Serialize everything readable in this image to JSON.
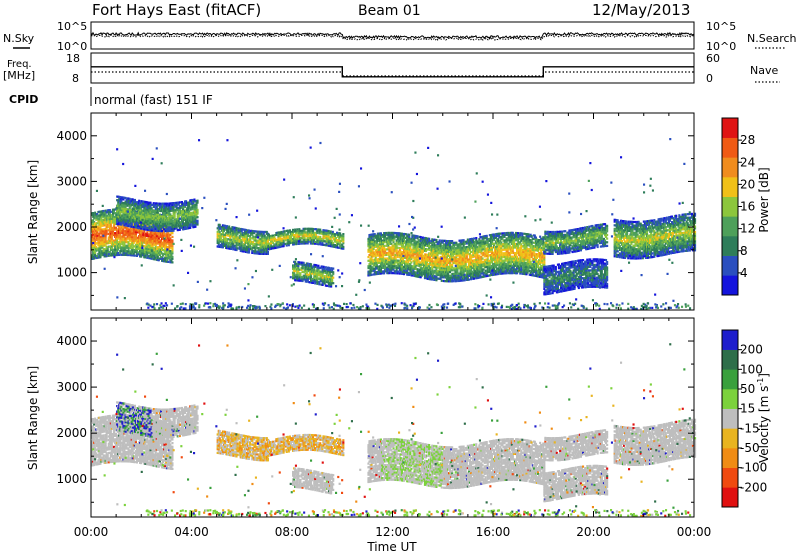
{
  "header": {
    "station": "Fort Hays East (fitACF)",
    "beam": "Beam 01",
    "date": "12/May/2013"
  },
  "noise_panel": {
    "left_label": "N.Sky",
    "right_label": "N.Search",
    "left_ticks": [
      "10^5",
      "10^0"
    ],
    "right_ticks": [
      "10^5",
      "10^0"
    ]
  },
  "freq_panel": {
    "left_label_line1": "Freq.",
    "left_label_line2": "[MHz]",
    "left_ticks": [
      "18",
      "8"
    ],
    "right_ticks": [
      "60",
      "0"
    ],
    "right_label": "Nave",
    "freq_mhz_step": [
      {
        "from_hour": 0,
        "to_hour": 10,
        "mhz": 14.5
      },
      {
        "from_hour": 10,
        "to_hour": 18,
        "mhz": 10.5
      },
      {
        "from_hour": 18,
        "to_hour": 24,
        "mhz": 14.5
      }
    ]
  },
  "cpid": {
    "label": "CPID",
    "mode": "normal (fast) 151 IF"
  },
  "colors": {
    "power_scale": [
      "#1414dc",
      "#2a4fbf",
      "#2e7d5a",
      "#4ea05a",
      "#8cc63c",
      "#f0c018",
      "#f08c1e",
      "#f05a14",
      "#e01414"
    ],
    "velocity_scale": [
      "#1e1ecc",
      "#2e6e4a",
      "#39a03c",
      "#7cd23c",
      "#bebebe",
      "#e8b420",
      "#f08c14",
      "#f04a10",
      "#e01010"
    ]
  },
  "chart_data": [
    {
      "type": "heatmap",
      "name": "power",
      "xlabel": "",
      "ylabel": "Slant Range [km]",
      "xlim": [
        0,
        24
      ],
      "ylim": [
        180,
        4500
      ],
      "y_ticks": [
        "1000",
        "2000",
        "3000",
        "4000"
      ],
      "colorbar_label": "Power [dB]",
      "colorbar_ticks": [
        "4",
        "8",
        "12",
        "16",
        "20",
        "24",
        "28"
      ],
      "colorbar_range": [
        0,
        32
      ],
      "echo_bands": [
        {
          "t0": 0.0,
          "t1": 3.2,
          "range_km": [
            1300,
            2300
          ],
          "peak_db": 28
        },
        {
          "t0": 1.0,
          "t1": 4.2,
          "range_km": [
            2000,
            2600
          ],
          "peak_db": 16
        },
        {
          "t0": 5.0,
          "t1": 7.0,
          "range_km": [
            1500,
            2000
          ],
          "peak_db": 18
        },
        {
          "t0": 7.0,
          "t1": 10.0,
          "range_km": [
            1550,
            1900
          ],
          "peak_db": 20
        },
        {
          "t0": 8.0,
          "t1": 9.6,
          "range_km": [
            750,
            1150
          ],
          "peak_db": 18
        },
        {
          "t0": 11.0,
          "t1": 18.0,
          "range_km": [
            900,
            1800
          ],
          "peak_db": 22
        },
        {
          "t0": 18.0,
          "t1": 20.5,
          "range_km": [
            1500,
            2000
          ],
          "peak_db": 16
        },
        {
          "t0": 18.0,
          "t1": 20.5,
          "range_km": [
            600,
            1200
          ],
          "peak_db": 10
        },
        {
          "t0": 20.8,
          "t1": 24.0,
          "range_km": [
            1400,
            2200
          ],
          "peak_db": 18
        }
      ]
    },
    {
      "type": "heatmap",
      "name": "velocity",
      "xlabel": "Time UT",
      "ylabel": "Slant Range [km]",
      "xlim": [
        0,
        24
      ],
      "ylim": [
        180,
        4500
      ],
      "x_ticks": [
        "00:00",
        "04:00",
        "08:00",
        "12:00",
        "16:00",
        "20:00",
        "00:00"
      ],
      "y_ticks": [
        "1000",
        "2000",
        "3000",
        "4000"
      ],
      "colorbar_label": "Velocity [m s^-1]",
      "colorbar_ticks": [
        "200",
        "100",
        "50",
        "15",
        "-15",
        "-50",
        "-100",
        "-200"
      ],
      "colorbar_range": [
        -300,
        300
      ]
    }
  ]
}
